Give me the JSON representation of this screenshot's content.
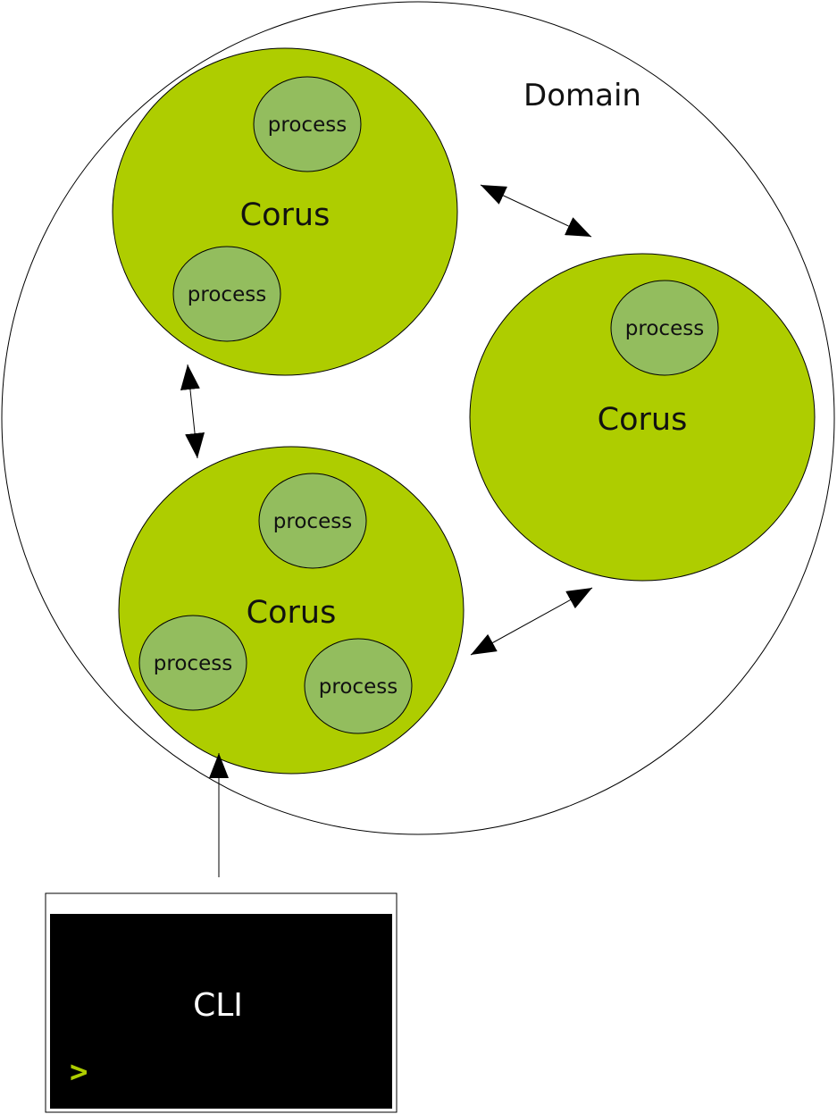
{
  "colors": {
    "corus_fill": "#aecd00",
    "process_fill": "#93bd5e",
    "terminal_bg": "#000000",
    "prompt": "#aecd00"
  },
  "domain": {
    "label": "Domain"
  },
  "nodes": [
    {
      "label": "Corus",
      "processes": [
        "process",
        "process"
      ]
    },
    {
      "label": "Corus",
      "processes": [
        "process"
      ]
    },
    {
      "label": "Corus",
      "processes": [
        "process",
        "process",
        "process"
      ]
    }
  ],
  "cli": {
    "label": "CLI",
    "prompt": ">"
  }
}
